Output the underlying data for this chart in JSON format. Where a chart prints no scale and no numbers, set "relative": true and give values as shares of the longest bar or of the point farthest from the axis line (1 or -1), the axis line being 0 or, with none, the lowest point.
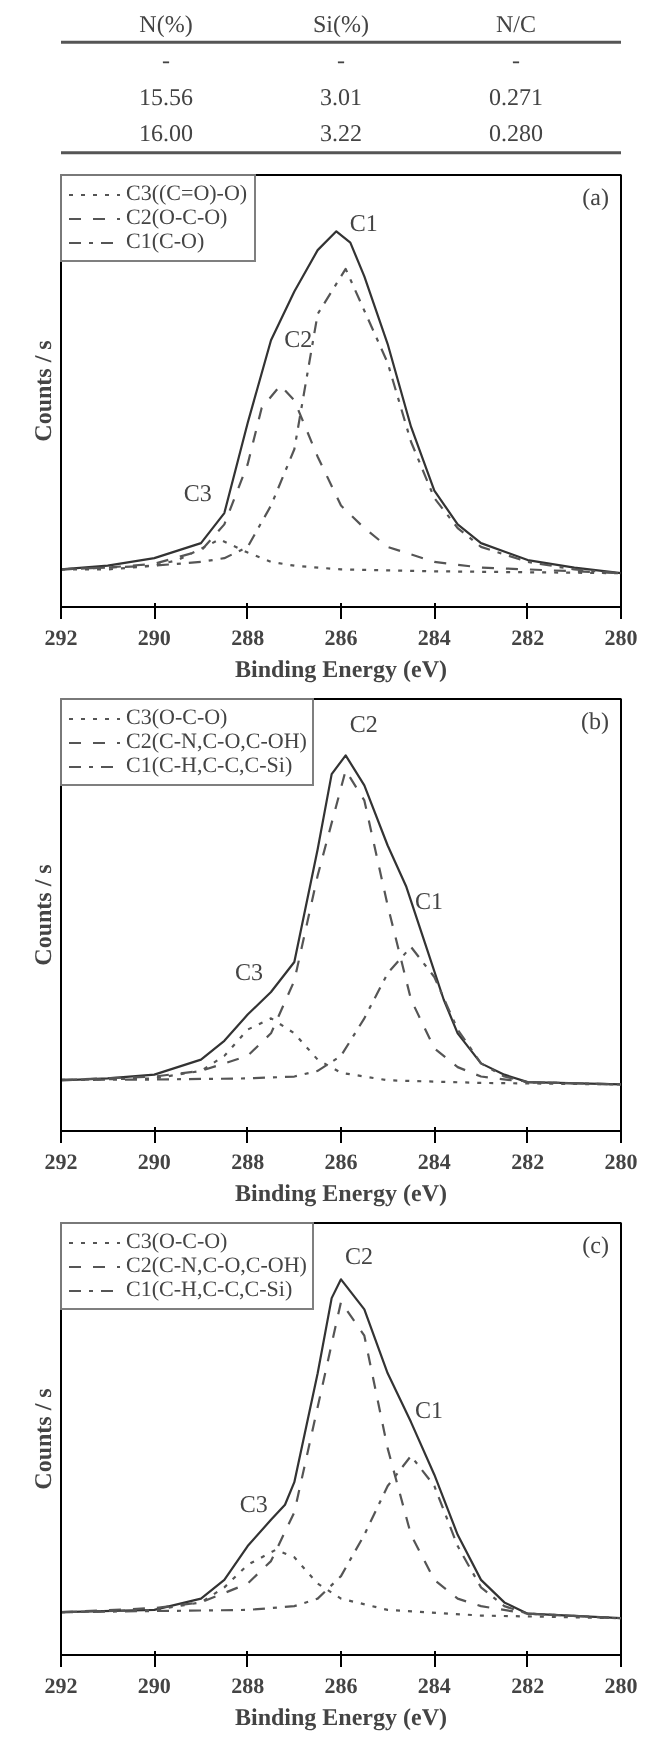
{
  "chart_data": [
    {
      "type": "other",
      "categories": [
        "N(%)",
        "Si(%)",
        "N/C"
      ],
      "annotations": [
        "-",
        "-",
        "-",
        "15.56",
        "3.01",
        "0.271",
        "16.00",
        "3.22",
        "0.280"
      ]
    },
    {
      "type": "line",
      "relative": true,
      "xlim": [
        292,
        280
      ],
      "xticks": [
        292,
        290,
        288,
        286,
        284,
        282,
        280
      ],
      "xlabel": "Binding Energy (eV)",
      "ylabel": "Counts / s",
      "legend": "top left",
      "grid": false,
      "series": [
        {
          "color": "#333333",
          "line_style": "solid",
          "x": [
            292,
            291,
            290,
            289.5,
            289,
            288.5,
            288,
            287.5,
            287,
            286.5,
            286.1,
            285.8,
            285.5,
            285,
            284.5,
            284,
            283.5,
            283,
            282,
            281,
            280
          ],
          "values": [
            0.1,
            0.11,
            0.13,
            0.15,
            0.17,
            0.25,
            0.49,
            0.71,
            0.84,
            0.95,
            1.0,
            0.97,
            0.88,
            0.7,
            0.48,
            0.31,
            0.22,
            0.17,
            0.125,
            0.105,
            0.09
          ]
        },
        {
          "name": "C3((C=O)-O)",
          "color": "#555555",
          "line_style": "dotted",
          "x": [
            292,
            291,
            290,
            289.5,
            289,
            288.6,
            288,
            287.5,
            287,
            286,
            284,
            280
          ],
          "values": [
            0.1,
            0.1,
            0.11,
            0.125,
            0.155,
            0.18,
            0.145,
            0.12,
            0.11,
            0.1,
            0.095,
            0.09
          ]
        },
        {
          "name": "C2(O-C-O)",
          "color": "#555555",
          "line_style": "dashed",
          "x": [
            292,
            291,
            290,
            289,
            288.5,
            288,
            287.7,
            287.3,
            287,
            286.5,
            286,
            285.5,
            285,
            284,
            283,
            282,
            280
          ],
          "values": [
            0.1,
            0.105,
            0.115,
            0.15,
            0.22,
            0.38,
            0.53,
            0.59,
            0.55,
            0.4,
            0.27,
            0.21,
            0.16,
            0.12,
            0.105,
            0.1,
            0.09
          ]
        },
        {
          "name": "C1(C-O)",
          "color": "#555555",
          "line_style": "dashdot",
          "x": [
            292,
            290,
            289,
            288.5,
            288,
            287.5,
            287,
            286.5,
            285.9,
            285,
            284.5,
            284,
            283.5,
            283,
            282,
            281,
            280
          ],
          "values": [
            0.1,
            0.11,
            0.12,
            0.13,
            0.16,
            0.27,
            0.42,
            0.78,
            0.9,
            0.65,
            0.44,
            0.29,
            0.21,
            0.16,
            0.12,
            0.1,
            0.09
          ]
        }
      ],
      "annotations": [
        "(a)",
        {
          "text": "C1",
          "x": 285.9,
          "y": 0.9
        },
        {
          "text": "C2",
          "x": 287.3,
          "y": 0.59
        },
        {
          "text": "C3",
          "x": 288.6,
          "y": 0.18
        }
      ]
    },
    {
      "type": "line",
      "relative": true,
      "xlim": [
        292,
        280
      ],
      "xticks": [
        292,
        290,
        288,
        286,
        284,
        282,
        280
      ],
      "xlabel": "Binding Energy (eV)",
      "ylabel": "Counts / s",
      "legend": "top left",
      "grid": false,
      "series": [
        {
          "color": "#333333",
          "line_style": "solid",
          "x": [
            292,
            291,
            290,
            289,
            288.5,
            288,
            287.5,
            287,
            286.5,
            286.2,
            285.9,
            285.5,
            285,
            284.6,
            284.2,
            283.8,
            283.5,
            283,
            282.5,
            282,
            280
          ],
          "values": [
            0.135,
            0.14,
            0.15,
            0.19,
            0.24,
            0.31,
            0.37,
            0.45,
            0.75,
            0.95,
            1.0,
            0.92,
            0.76,
            0.65,
            0.5,
            0.35,
            0.26,
            0.18,
            0.15,
            0.13,
            0.124
          ]
        },
        {
          "name": "C3(O-C-O)",
          "color": "#555555",
          "line_style": "dotted",
          "x": [
            292,
            290,
            289,
            288.5,
            288,
            287.5,
            287,
            286.5,
            286,
            285,
            283,
            280
          ],
          "values": [
            0.136,
            0.14,
            0.16,
            0.2,
            0.27,
            0.3,
            0.26,
            0.19,
            0.155,
            0.135,
            0.128,
            0.124
          ]
        },
        {
          "name": "C2(C-N,C-O,C-OH)",
          "color": "#555555",
          "line_style": "dashed",
          "x": [
            292,
            290,
            289,
            288,
            287.5,
            287,
            286.5,
            285.9,
            285.5,
            285,
            284.5,
            284,
            283.5,
            283,
            282,
            280
          ],
          "values": [
            0.136,
            0.145,
            0.16,
            0.2,
            0.26,
            0.4,
            0.68,
            0.96,
            0.88,
            0.6,
            0.35,
            0.22,
            0.17,
            0.145,
            0.13,
            0.124
          ]
        },
        {
          "name": "C1(C-H,C-C,C-Si)",
          "color": "#555555",
          "line_style": "dashdot",
          "x": [
            292,
            290,
            288,
            287,
            286.5,
            286,
            285.5,
            285,
            284.5,
            284,
            283.5,
            283,
            282.5,
            282,
            280
          ],
          "values": [
            0.136,
            0.137,
            0.14,
            0.145,
            0.16,
            0.2,
            0.3,
            0.42,
            0.49,
            0.41,
            0.27,
            0.18,
            0.145,
            0.13,
            0.124
          ]
        }
      ],
      "annotations": [
        "(b)",
        {
          "text": "C2",
          "x": 285.9,
          "y": 0.96
        },
        {
          "text": "C1",
          "x": 284.5,
          "y": 0.49
        },
        {
          "text": "C3",
          "x": 287.5,
          "y": 0.3
        }
      ]
    },
    {
      "type": "line",
      "relative": true,
      "xlim": [
        292,
        280
      ],
      "xticks": [
        292,
        290,
        288,
        286,
        284,
        282,
        280
      ],
      "xlabel": "Binding Energy (eV)",
      "ylabel": "Counts / s",
      "legend": "top left",
      "grid": false,
      "series": [
        {
          "color": "#333333",
          "line_style": "solid",
          "x": [
            292,
            290,
            289,
            288.5,
            288,
            287.5,
            287.2,
            287,
            286.5,
            286.2,
            286,
            285.5,
            285,
            284.5,
            284,
            283.5,
            283,
            282.5,
            282,
            280
          ],
          "values": [
            0.114,
            0.12,
            0.15,
            0.2,
            0.29,
            0.36,
            0.4,
            0.46,
            0.75,
            0.95,
            1.0,
            0.92,
            0.75,
            0.62,
            0.48,
            0.32,
            0.2,
            0.14,
            0.11,
            0.098
          ]
        },
        {
          "name": "C3(O-C-O)",
          "color": "#555555",
          "line_style": "dotted",
          "x": [
            292,
            290,
            289,
            288.5,
            288,
            287.4,
            287,
            286.5,
            286,
            285,
            283,
            280
          ],
          "values": [
            0.114,
            0.12,
            0.14,
            0.18,
            0.24,
            0.28,
            0.26,
            0.19,
            0.15,
            0.12,
            0.105,
            0.098
          ]
        },
        {
          "name": "C2(C-N,C-O,C-OH)",
          "color": "#555555",
          "line_style": "dashed",
          "x": [
            292,
            290,
            289,
            288,
            287.5,
            287,
            286.5,
            286,
            285.5,
            285,
            284.5,
            284,
            283.5,
            283,
            282,
            280
          ],
          "values": [
            0.114,
            0.125,
            0.14,
            0.19,
            0.25,
            0.38,
            0.66,
            0.94,
            0.85,
            0.55,
            0.32,
            0.2,
            0.15,
            0.13,
            0.11,
            0.098
          ]
        },
        {
          "name": "C1(C-H,C-C,C-Si)",
          "color": "#555555",
          "line_style": "dashdot",
          "x": [
            292,
            288,
            287,
            286.5,
            286,
            285.5,
            285,
            284.5,
            284,
            283.5,
            283,
            282.5,
            282,
            280
          ],
          "values": [
            0.114,
            0.12,
            0.13,
            0.15,
            0.21,
            0.32,
            0.45,
            0.53,
            0.45,
            0.29,
            0.18,
            0.13,
            0.11,
            0.098
          ]
        }
      ],
      "annotations": [
        "(c)",
        {
          "text": "C2",
          "x": 286,
          "y": 0.94
        },
        {
          "text": "C1",
          "x": 284.5,
          "y": 0.53
        },
        {
          "text": "C3",
          "x": 287.4,
          "y": 0.28
        }
      ]
    }
  ]
}
